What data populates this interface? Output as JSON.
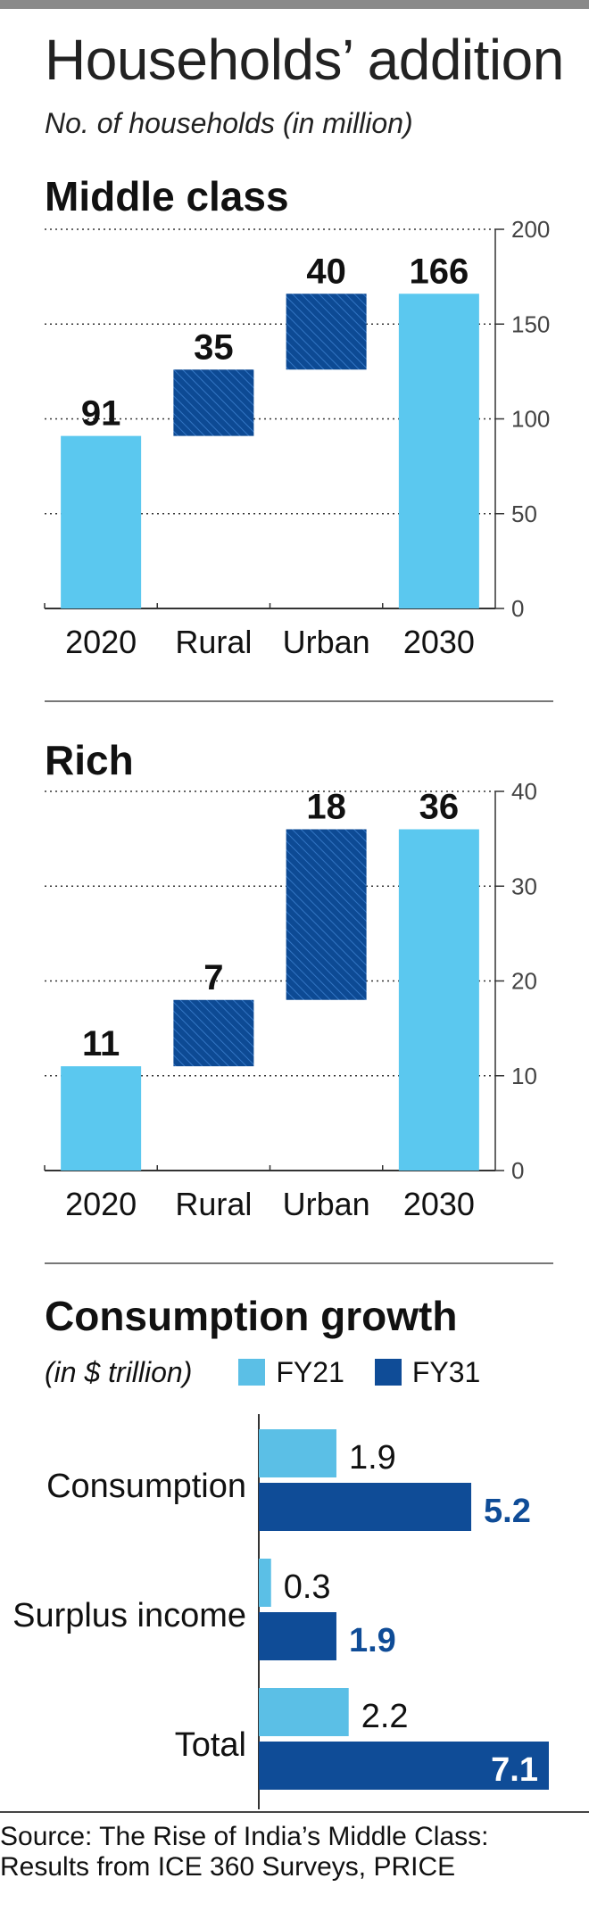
{
  "header": {
    "title": "Households’ addition",
    "subtitle": "No. of households (in million)"
  },
  "colors": {
    "light_blue": "#5bc8ef",
    "dark_blue": "#0d4a94",
    "fy21": "#5bbfe6",
    "fy31": "#0f4c97"
  },
  "chart_data": [
    {
      "type": "bar",
      "subtype": "waterfall",
      "title": "Middle class",
      "categories": [
        "2020",
        "Rural",
        "Urban",
        "2030"
      ],
      "values": [
        91,
        35,
        40,
        166
      ],
      "value_labels": [
        "91",
        "35",
        "40",
        "166"
      ],
      "ylim": [
        0,
        200
      ],
      "yticks": [
        "0",
        "50",
        "100",
        "150",
        "200"
      ],
      "grid": true,
      "axis_side": "right"
    },
    {
      "type": "bar",
      "subtype": "waterfall",
      "title": "Rich",
      "categories": [
        "2020",
        "Rural",
        "Urban",
        "2030"
      ],
      "values": [
        11,
        7,
        18,
        36
      ],
      "value_labels": [
        "11",
        "7",
        "18",
        "36"
      ],
      "ylim": [
        0,
        40
      ],
      "yticks": [
        "0",
        "10",
        "20",
        "30",
        "40"
      ],
      "grid": true,
      "axis_side": "right"
    },
    {
      "type": "bar",
      "orientation": "horizontal",
      "title": "Consumption growth",
      "unit_label": "(in $ trillion)",
      "categories": [
        "Consumption",
        "Surplus income",
        "Total"
      ],
      "series": [
        {
          "name": "FY21",
          "values": [
            1.9,
            0.3,
            2.2
          ],
          "labels": [
            "1.9",
            "0.3",
            "2.2"
          ]
        },
        {
          "name": "FY31",
          "values": [
            5.2,
            1.9,
            7.1
          ],
          "labels": [
            "5.2",
            "1.9",
            "7.1"
          ]
        }
      ],
      "xlim": [
        0,
        7.1
      ],
      "legend": "top"
    }
  ],
  "source": {
    "line1": "Source: The Rise of India’s Middle Class:",
    "line2": "Results from ICE 360 Surveys, PRICE"
  }
}
